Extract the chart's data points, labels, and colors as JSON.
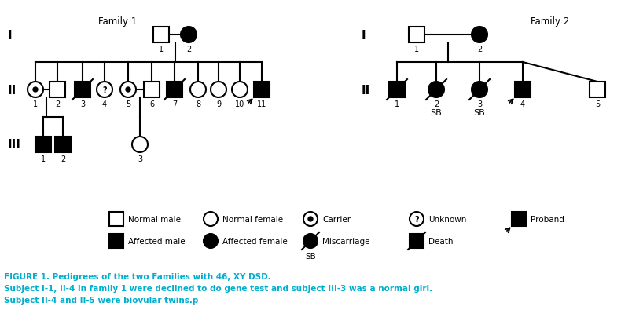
{
  "title": "FIGURE 1. Pedigrees of the two Families with 46, XY DSD.",
  "subtitle1": "Subject I-1, II-4 in family 1 were declined to do gene test and subject III-3 was a normal girl.",
  "subtitle2": "Subject II-4 and II-5 were biovular twins.p",
  "text_color": "#00AECD",
  "bg_color": "#ffffff"
}
